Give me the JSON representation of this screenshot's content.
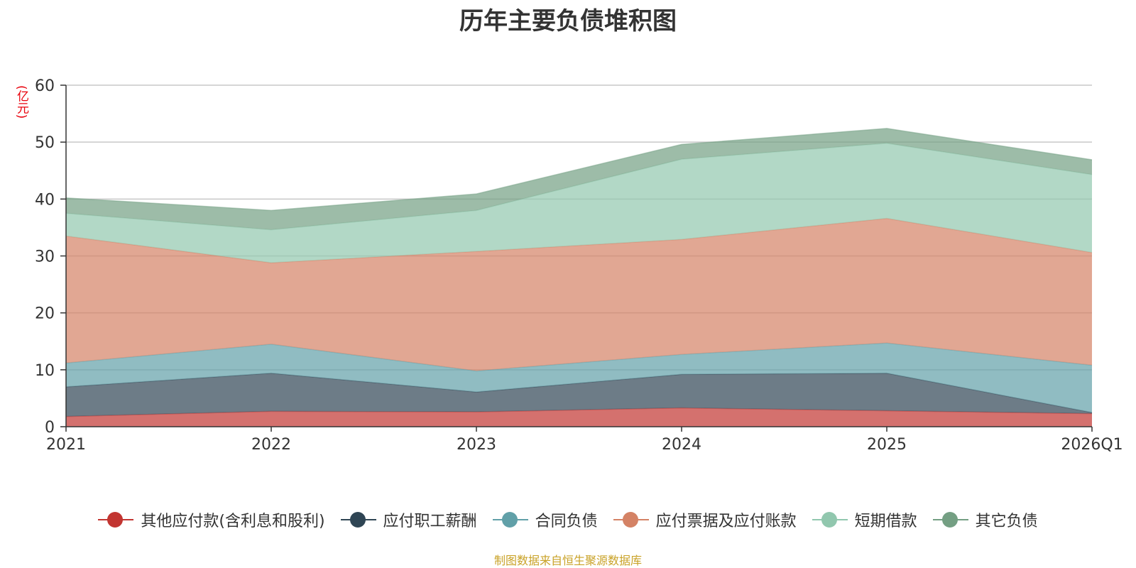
{
  "chart_data": {
    "type": "area",
    "stacked": true,
    "title": "历年主要负债堆积图",
    "ylabel": "(亿元)",
    "xlabel": "",
    "categories": [
      "2021",
      "2022",
      "2023",
      "2024",
      "2025",
      "2026Q1"
    ],
    "ylim": [
      0,
      60
    ],
    "yticks": [
      0,
      10,
      20,
      30,
      40,
      50,
      60
    ],
    "grid": true,
    "legend_position": "bottom",
    "series": [
      {
        "name": "其他应付款(含利息和股利)",
        "color": "#c23531",
        "values": [
          1.8,
          2.7,
          2.6,
          3.3,
          2.8,
          2.3
        ]
      },
      {
        "name": "应付职工薪酬",
        "color": "#2f4554",
        "values": [
          5.2,
          6.7,
          3.5,
          5.9,
          6.6,
          0.2
        ]
      },
      {
        "name": "合同负债",
        "color": "#61a0a8",
        "values": [
          4.2,
          5.1,
          3.7,
          3.5,
          5.3,
          8.3
        ]
      },
      {
        "name": "应付票据及应付账款",
        "color": "#d48265",
        "values": [
          22.3,
          14.3,
          21.0,
          20.2,
          21.9,
          19.8
        ]
      },
      {
        "name": "短期借款",
        "color": "#91c7ae",
        "values": [
          4.0,
          5.8,
          7.2,
          14.1,
          13.2,
          13.7
        ]
      },
      {
        "name": "其它负债",
        "color": "#749f83",
        "values": [
          2.7,
          3.4,
          2.9,
          2.6,
          2.6,
          2.6
        ]
      }
    ]
  },
  "footer": "制图数据来自恒生聚源数据库"
}
